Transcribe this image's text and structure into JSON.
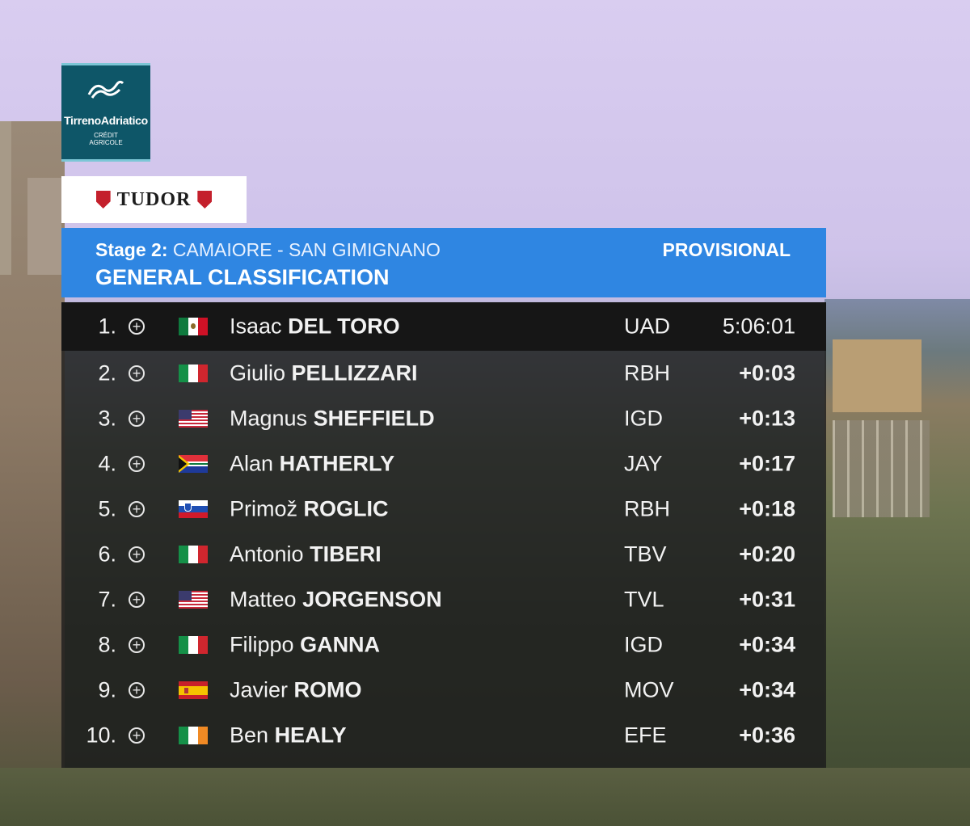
{
  "logo": {
    "name": "TirrenoAdriatico",
    "sponsor_line1": "CRÉDIT",
    "sponsor_line2": "AGRICOLE"
  },
  "tudor": {
    "label": "TUDOR"
  },
  "header": {
    "stage_prefix": "Stage 2:",
    "stage_route": "CAMAIORE - SAN GIMIGNANO",
    "status": "PROVISIONAL",
    "title": "GENERAL CLASSIFICATION"
  },
  "rows": [
    {
      "pos": "1.",
      "first": "Isaac",
      "last": "DEL TORO",
      "team": "UAD",
      "time": "5:06:01",
      "flag": "mx"
    },
    {
      "pos": "2.",
      "first": "Giulio",
      "last": "PELLIZZARI",
      "team": "RBH",
      "time": "+0:03",
      "flag": "it"
    },
    {
      "pos": "3.",
      "first": "Magnus",
      "last": "SHEFFIELD",
      "team": "IGD",
      "time": "+0:13",
      "flag": "us"
    },
    {
      "pos": "4.",
      "first": "Alan",
      "last": "HATHERLY",
      "team": "JAY",
      "time": "+0:17",
      "flag": "za"
    },
    {
      "pos": "5.",
      "first": "Primož",
      "last": "ROGLIC",
      "team": "RBH",
      "time": "+0:18",
      "flag": "si"
    },
    {
      "pos": "6.",
      "first": "Antonio",
      "last": "TIBERI",
      "team": "TBV",
      "time": "+0:20",
      "flag": "it"
    },
    {
      "pos": "7.",
      "first": "Matteo",
      "last": "JORGENSON",
      "team": "TVL",
      "time": "+0:31",
      "flag": "us"
    },
    {
      "pos": "8.",
      "first": "Filippo",
      "last": "GANNA",
      "team": "IGD",
      "time": "+0:34",
      "flag": "it"
    },
    {
      "pos": "9.",
      "first": "Javier",
      "last": "ROMO",
      "team": "MOV",
      "time": "+0:34",
      "flag": "es"
    },
    {
      "pos": "10.",
      "first": "Ben",
      "last": "HEALY",
      "team": "EFE",
      "time": "+0:36",
      "flag": "ie"
    }
  ],
  "colors": {
    "header_blue": "#2f86e2",
    "logo_teal": "#0e5668",
    "tudor_red": "#c4202c"
  }
}
